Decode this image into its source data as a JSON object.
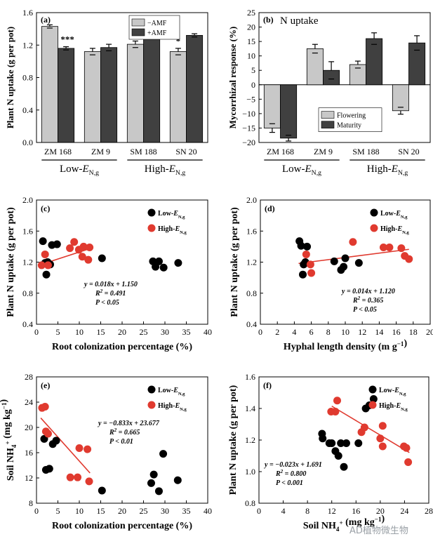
{
  "chart_data": [
    {
      "id": "a",
      "type": "bar",
      "panel_letter": "(a)",
      "ylabel": "Plant N uptake (g per pot)",
      "ylim": [
        0.0,
        1.6
      ],
      "yticks": [
        "0.0",
        "0.4",
        "0.8",
        "1.2",
        "1.6"
      ],
      "categories": [
        "ZM 168",
        "ZM 9",
        "SM 188",
        "SN 20"
      ],
      "group_labels": [
        "Low-E_N,g",
        "High-E_N,g"
      ],
      "series": [
        {
          "name": "−AMF",
          "color": "#c8c8c8",
          "values": [
            1.43,
            1.12,
            1.21,
            1.12
          ],
          "errors": [
            0.02,
            0.04,
            0.04,
            0.04
          ]
        },
        {
          "name": "+AMF",
          "color": "#404040",
          "values": [
            1.16,
            1.17,
            1.39,
            1.32
          ],
          "errors": [
            0.02,
            0.04,
            0.02,
            0.02
          ]
        }
      ],
      "significance": [
        "***",
        "",
        "*",
        "*"
      ],
      "legend_position": "top-right"
    },
    {
      "id": "b",
      "type": "bar",
      "panel_letter": "(b)",
      "title": "N uptake",
      "ylabel": "Mycorrhizal response (%)",
      "ylim": [
        -20,
        25
      ],
      "yticks": [
        "−20",
        "−15",
        "−10",
        "−5",
        "0",
        "5",
        "10",
        "15",
        "20",
        "25"
      ],
      "categories": [
        "ZM 168",
        "ZM 9",
        "SM 188",
        "SN 20"
      ],
      "group_labels": [
        "Low-E_N,g",
        "High-E_N,g"
      ],
      "series": [
        {
          "name": "Flowering",
          "color": "#c8c8c8",
          "values": [
            -15,
            12.5,
            7,
            -9
          ],
          "errors": [
            1.5,
            1.5,
            1.2,
            1.2
          ]
        },
        {
          "name": "Maturity",
          "color": "#404040",
          "values": [
            -18.5,
            5,
            16,
            14.5
          ],
          "errors": [
            1.0,
            3.0,
            2.0,
            2.5
          ]
        }
      ],
      "legend_position": "bottom-right"
    },
    {
      "id": "c",
      "type": "scatter",
      "panel_letter": "(c)",
      "xlabel": "Root colonization percentage (%)",
      "ylabel": "Plant N uptake (g per pot)",
      "xlim": [
        0,
        40
      ],
      "ylim": [
        0.4,
        2.0
      ],
      "xticks": [
        "0",
        "5",
        "10",
        "15",
        "20",
        "25",
        "30",
        "35",
        "40"
      ],
      "yticks": [
        "0.4",
        "0.8",
        "1.2",
        "1.6",
        "2.0"
      ],
      "series": [
        {
          "name": "Low-E_N,g",
          "color": "#000000",
          "points": [
            [
              1.5,
              1.47
            ],
            [
              2.0,
              1.19
            ],
            [
              2.3,
              1.04
            ],
            [
              2.6,
              1.2
            ],
            [
              3.2,
              1.17
            ],
            [
              3.6,
              1.42
            ],
            [
              4.8,
              1.43
            ],
            [
              15.3,
              1.25
            ],
            [
              27.2,
              1.21
            ],
            [
              27.8,
              1.14
            ],
            [
              28.6,
              1.21
            ],
            [
              29.7,
              1.13
            ],
            [
              33.1,
              1.19
            ]
          ]
        },
        {
          "name": "High-E_N,g",
          "color": "#e03a2f",
          "points": [
            [
              1.2,
              1.16
            ],
            [
              2.0,
              1.3
            ],
            [
              2.7,
              1.16
            ],
            [
              7.8,
              1.38
            ],
            [
              8.8,
              1.46
            ],
            [
              9.9,
              1.36
            ],
            [
              10.7,
              1.27
            ],
            [
              11.0,
              1.4
            ],
            [
              12.1,
              1.23
            ],
            [
              12.4,
              1.39
            ]
          ]
        }
      ],
      "fit_line": {
        "x": [
          0.5,
          12.5
        ]
      },
      "annotation": [
        "y = 0.018x + 1.150",
        "R2 = 0.491",
        "P < 0.05"
      ],
      "legend_position": "top-right"
    },
    {
      "id": "d",
      "type": "scatter",
      "panel_letter": "(d)",
      "xlabel": "Hyphal length density (m g−1)",
      "ylabel": "Plant N uptake (g per pot)",
      "xlim": [
        0,
        20
      ],
      "ylim": [
        0.4,
        2.0
      ],
      "xticks": [
        "0",
        "2",
        "4",
        "6",
        "8",
        "10",
        "12",
        "14",
        "16",
        "18",
        "20"
      ],
      "yticks": [
        "0.4",
        "0.8",
        "1.2",
        "1.6",
        "2.0"
      ],
      "series": [
        {
          "name": "Low-E_N,g",
          "color": "#000000",
          "points": [
            [
              4.6,
              1.47
            ],
            [
              4.8,
              1.41
            ],
            [
              5.0,
              1.04
            ],
            [
              5.1,
              1.17
            ],
            [
              5.3,
              1.2
            ],
            [
              5.5,
              1.4
            ],
            [
              8.7,
              1.21
            ],
            [
              9.5,
              1.1
            ],
            [
              9.8,
              1.14
            ],
            [
              10.0,
              1.25
            ],
            [
              11.6,
              1.19
            ]
          ]
        },
        {
          "name": "High-E_N,g",
          "color": "#e03a2f",
          "points": [
            [
              5.4,
              1.3
            ],
            [
              5.9,
              1.17
            ],
            [
              6.0,
              1.06
            ],
            [
              10.9,
              1.46
            ],
            [
              14.5,
              1.39
            ],
            [
              15.2,
              1.39
            ],
            [
              16.6,
              1.38
            ],
            [
              17.0,
              1.28
            ],
            [
              17.5,
              1.24
            ]
          ]
        }
      ],
      "fit_line": {
        "x": [
          4.5,
          17.5
        ]
      },
      "annotation": [
        "y = 0.014x + 1.120",
        "R2 = 0.365",
        "P < 0.05"
      ],
      "legend_position": "top-right"
    },
    {
      "id": "e",
      "type": "scatter",
      "panel_letter": "(e)",
      "xlabel": "Root colonization percentage (%)",
      "ylabel": "Soil NH4+ (mg kg−1)",
      "xlim": [
        0,
        40
      ],
      "ylim": [
        8,
        30
      ],
      "xticks": [
        "0",
        "5",
        "10",
        "15",
        "20",
        "25",
        "30",
        "35",
        "40"
      ],
      "yticks": [
        "8",
        "12",
        "16",
        "20",
        "24",
        "28"
      ],
      "series": [
        {
          "name": "Low-E_N,g",
          "color": "#000000",
          "points": [
            [
              1.8,
              19.2
            ],
            [
              2.2,
              13.8
            ],
            [
              3.0,
              14.0
            ],
            [
              3.8,
              18.3
            ],
            [
              4.6,
              18.9
            ],
            [
              15.3,
              10.2
            ],
            [
              26.8,
              11.5
            ],
            [
              27.4,
              13.0
            ],
            [
              28.6,
              10.1
            ],
            [
              29.6,
              16.6
            ],
            [
              33.0,
              12.0
            ]
          ]
        },
        {
          "name": "High-E_N,g",
          "color": "#e03a2f",
          "points": [
            [
              1.3,
              24.6
            ],
            [
              2.0,
              24.8
            ],
            [
              2.2,
              20.5
            ],
            [
              2.7,
              20.1
            ],
            [
              7.9,
              12.5
            ],
            [
              9.6,
              12.5
            ],
            [
              10.0,
              17.6
            ],
            [
              11.9,
              17.4
            ],
            [
              12.3,
              11.8
            ]
          ]
        }
      ],
      "fit_line": {
        "x": [
          1.0,
          12.5
        ]
      },
      "annotation": [
        "y = −0.833x + 23.677",
        "R2 = 0.665",
        "P < 0.01"
      ],
      "legend_position": "top-right"
    },
    {
      "id": "f",
      "type": "scatter",
      "panel_letter": "(f)",
      "xlabel": "Soil NH4+ (mg kg−1)",
      "ylabel": "Plant N uptake (g per pot)",
      "xlim": [
        0,
        28
      ],
      "ylim": [
        0.8,
        1.6
      ],
      "xticks": [
        "0",
        "4",
        "8",
        "12",
        "16",
        "20",
        "24",
        "28"
      ],
      "yticks": [
        "0.8",
        "1.0",
        "1.2",
        "1.4",
        "1.6"
      ],
      "series": [
        {
          "name": "Low-E_N,g",
          "color": "#000000",
          "points": [
            [
              10.4,
              1.24
            ],
            [
              10.5,
              1.21
            ],
            [
              11.6,
              1.18
            ],
            [
              12.0,
              1.18
            ],
            [
              12.6,
              1.13
            ],
            [
              13.1,
              1.1
            ],
            [
              13.5,
              1.18
            ],
            [
              14.0,
              1.03
            ],
            [
              14.4,
              1.18
            ],
            [
              16.4,
              1.18
            ],
            [
              17.6,
              1.4
            ],
            [
              18.2,
              1.42
            ],
            [
              18.9,
              1.46
            ]
          ]
        },
        {
          "name": "High-E_N,g",
          "color": "#e03a2f",
          "points": [
            [
              11.9,
              1.38
            ],
            [
              12.6,
              1.38
            ],
            [
              12.9,
              1.45
            ],
            [
              16.9,
              1.25
            ],
            [
              17.4,
              1.28
            ],
            [
              20.0,
              1.21
            ],
            [
              20.4,
              1.29
            ],
            [
              20.4,
              1.16
            ],
            [
              23.9,
              1.16
            ],
            [
              24.3,
              1.15
            ],
            [
              24.6,
              1.06
            ]
          ]
        }
      ],
      "fit_line": {
        "x": [
          12.0,
          24.8
        ]
      },
      "annotation": [
        "y = −0.023x + 1.691",
        "R2 = 0.800",
        "P < 0.001"
      ],
      "legend_position": "top-right"
    }
  ],
  "watermark": "AD植物微生物"
}
